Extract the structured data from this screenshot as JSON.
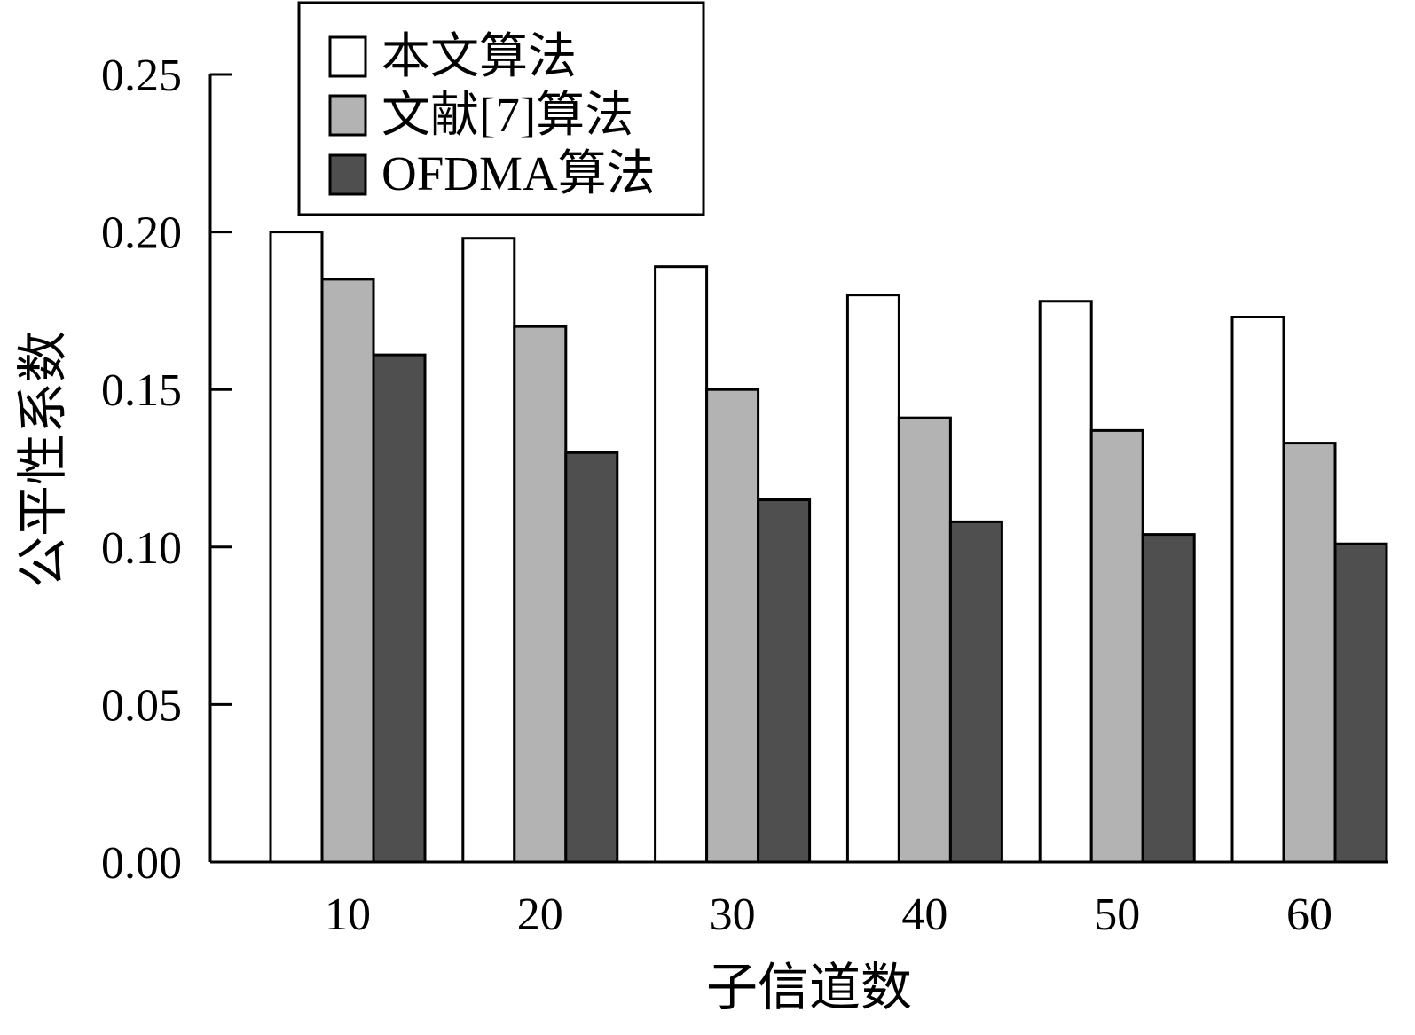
{
  "chart_data": {
    "type": "bar",
    "categories": [
      "10",
      "20",
      "30",
      "40",
      "50",
      "60"
    ],
    "series": [
      {
        "name": "本文算法",
        "values": [
          0.2,
          0.198,
          0.189,
          0.18,
          0.178,
          0.173
        ],
        "color": "#ffffff"
      },
      {
        "name": "文献[7]算法",
        "values": [
          0.185,
          0.17,
          0.15,
          0.141,
          0.137,
          0.133
        ],
        "color": "#b3b3b3"
      },
      {
        "name": "OFDMA算法",
        "values": [
          0.161,
          0.13,
          0.115,
          0.108,
          0.104,
          0.101
        ],
        "color": "#4f4f4f"
      }
    ],
    "xlabel": "子信道数",
    "ylabel": "公平性系数",
    "ylim": [
      0,
      0.25
    ],
    "yticks": [
      "0.00",
      "0.05",
      "0.10",
      "0.15",
      "0.20",
      "0.25"
    ],
    "grid": false,
    "legend_position": "top-left"
  }
}
